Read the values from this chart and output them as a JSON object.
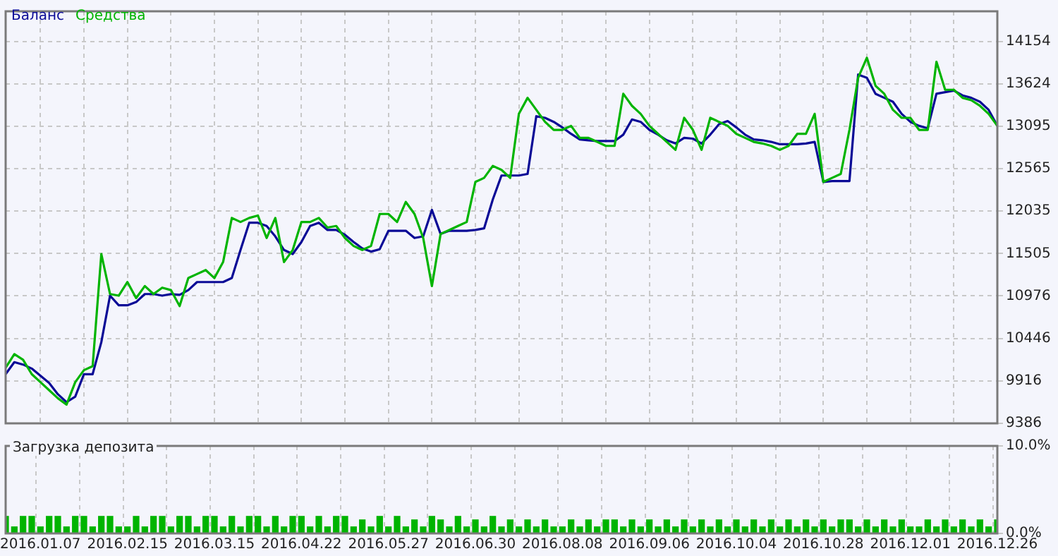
{
  "chart_data": [
    {
      "type": "line",
      "categories": [
        null,
        null,
        null,
        null,
        "2016.01.07",
        null,
        null,
        null,
        null,
        null,
        null,
        null,
        null,
        null,
        "2016.02.15",
        null,
        null,
        null,
        null,
        null,
        null,
        null,
        null,
        null,
        "2016.03.15",
        null,
        null,
        null,
        null,
        null,
        null,
        null,
        null,
        null,
        "2016.04.22",
        null,
        null,
        null,
        null,
        null,
        null,
        null,
        null,
        null,
        "2016.05.27",
        null,
        null,
        null,
        null,
        null,
        null,
        null,
        null,
        null,
        "2016.06.30",
        null,
        null,
        null,
        null,
        null,
        null,
        null,
        null,
        null,
        "2016.08.08",
        null,
        null,
        null,
        null,
        null,
        null,
        null,
        null,
        null,
        "2016.09.06",
        null,
        null,
        null,
        null,
        null,
        null,
        null,
        null,
        null,
        "2016.10.04",
        null,
        null,
        null,
        null,
        null,
        null,
        null,
        null,
        null,
        "2016.10.28",
        null,
        null,
        null,
        null,
        null,
        null,
        null,
        null,
        null,
        "2016.12.01",
        null,
        null,
        null,
        null,
        null,
        null,
        null,
        null,
        null,
        "2016.12.26"
      ],
      "series": [
        {
          "name": "Средства",
          "color": "#00b400",
          "values": [
            10080,
            10250,
            10180,
            10000,
            9900,
            9800,
            9700,
            9620,
            9900,
            10050,
            10100,
            11500,
            11000,
            10980,
            11150,
            10950,
            11100,
            11000,
            11080,
            11050,
            10850,
            11200,
            11250,
            11300,
            11200,
            11400,
            11950,
            11900,
            11950,
            11980,
            11700,
            11950,
            11400,
            11550,
            11900,
            11900,
            11950,
            11830,
            11850,
            11700,
            11600,
            11550,
            11600,
            12000,
            12000,
            11900,
            12150,
            12000,
            11700,
            11100,
            11750,
            11800,
            11850,
            11900,
            12400,
            12450,
            12600,
            12550,
            12450,
            13250,
            13450,
            13300,
            13150,
            13050,
            13050,
            13100,
            12950,
            12950,
            12900,
            12850,
            12850,
            13500,
            13350,
            13250,
            13100,
            13000,
            12900,
            12800,
            13200,
            13050,
            12800,
            13200,
            13150,
            13100,
            13000,
            12950,
            12900,
            12880,
            12850,
            12800,
            12850,
            13000,
            13000,
            13250,
            12400,
            12450,
            12500,
            13050,
            13700,
            13950,
            13600,
            13500,
            13300,
            13200,
            13200,
            13050,
            13050,
            13900,
            13550,
            13550,
            13450,
            13420,
            13350,
            13250,
            13100
          ]
        },
        {
          "name": "Баланс",
          "color": "#0a0a96",
          "values": [
            10000,
            10150,
            10120,
            10070,
            9980,
            9890,
            9750,
            9650,
            9720,
            10000,
            10000,
            10400,
            10980,
            10860,
            10860,
            10900,
            11000,
            11000,
            10980,
            11000,
            10990,
            11050,
            11150,
            11150,
            11150,
            11150,
            11200,
            11550,
            11890,
            11890,
            11850,
            11720,
            11550,
            11500,
            11650,
            11850,
            11890,
            11800,
            11800,
            11740,
            11650,
            11570,
            11530,
            11560,
            11790,
            11790,
            11790,
            11700,
            11720,
            12050,
            11750,
            11790,
            11790,
            11790,
            11800,
            11820,
            12180,
            12480,
            12480,
            12480,
            12500,
            13220,
            13200,
            13150,
            13080,
            13000,
            12930,
            12920,
            12910,
            12910,
            12910,
            12990,
            13180,
            13150,
            13050,
            12990,
            12920,
            12880,
            12950,
            12940,
            12880,
            12990,
            13120,
            13160,
            13080,
            12990,
            12930,
            12920,
            12900,
            12870,
            12870,
            12870,
            12880,
            12900,
            12400,
            12410,
            12410,
            12410,
            13740,
            13700,
            13500,
            13450,
            13400,
            13250,
            13150,
            13100,
            13070,
            13500,
            13520,
            13540,
            13480,
            13450,
            13400,
            13300,
            13100
          ]
        }
      ],
      "ylim": [
        9386,
        14530
      ],
      "yticks": [
        9386,
        9916,
        10446,
        10976,
        11505,
        12035,
        12565,
        13095,
        13624,
        14154
      ],
      "grid": true,
      "legend": "top left",
      "tick_labels": "y"
    },
    {
      "type": "bar",
      "title": "Загрузка депозита",
      "categories": [
        null,
        null,
        null,
        null,
        "2016.01.07",
        null,
        null,
        null,
        null,
        null,
        null,
        null,
        null,
        null,
        "2016.02.15",
        null,
        null,
        null,
        null,
        null,
        null,
        null,
        null,
        null,
        "2016.03.15",
        null,
        null,
        null,
        null,
        null,
        null,
        null,
        null,
        null,
        "2016.04.22",
        null,
        null,
        null,
        null,
        null,
        null,
        null,
        null,
        null,
        "2016.05.27",
        null,
        null,
        null,
        null,
        null,
        null,
        null,
        null,
        null,
        "2016.06.30",
        null,
        null,
        null,
        null,
        null,
        null,
        null,
        null,
        null,
        "2016.08.08",
        null,
        null,
        null,
        null,
        null,
        null,
        null,
        null,
        null,
        "2016.09.06",
        null,
        null,
        null,
        null,
        null,
        null,
        null,
        null,
        null,
        "2016.10.04",
        null,
        null,
        null,
        null,
        null,
        null,
        null,
        null,
        null,
        "2016.10.28",
        null,
        null,
        null,
        null,
        null,
        null,
        null,
        null,
        null,
        "2016.12.01",
        null,
        null,
        null,
        null,
        null,
        null,
        null,
        null,
        null,
        "2016.12.26"
      ],
      "color": "#00b400",
      "values": [
        2.0,
        0.8,
        2.0,
        2.0,
        0.8,
        2.0,
        2.0,
        0.8,
        2.0,
        2.0,
        0.8,
        2.0,
        2.0,
        0.8,
        0.8,
        2.0,
        0.8,
        2.0,
        2.0,
        0.8,
        2.0,
        2.0,
        0.8,
        2.0,
        2.0,
        0.8,
        2.0,
        0.8,
        2.0,
        2.0,
        0.8,
        2.0,
        0.8,
        2.0,
        2.0,
        0.8,
        2.0,
        0.8,
        2.0,
        2.0,
        0.8,
        1.6,
        0.8,
        2.0,
        0.8,
        2.0,
        0.8,
        1.6,
        0.8,
        2.0,
        1.6,
        0.8,
        2.0,
        0.8,
        1.6,
        0.8,
        2.0,
        0.8,
        1.6,
        0.8,
        1.6,
        0.8,
        1.6,
        0.8,
        0.8,
        1.6,
        0.8,
        1.6,
        0.8,
        1.6,
        1.6,
        0.8,
        1.6,
        0.8,
        1.6,
        0.8,
        1.6,
        0.8,
        1.6,
        0.8,
        1.6,
        0.8,
        1.6,
        0.8,
        1.6,
        0.8,
        1.6,
        0.8,
        1.6,
        0.8,
        1.6,
        0.8,
        1.6,
        0.8,
        1.6,
        0.8,
        1.6,
        1.6,
        0.8,
        1.6,
        0.8,
        1.6,
        0.8,
        1.6,
        0.8,
        0.8,
        1.6,
        0.8,
        1.6,
        0.8,
        1.6,
        0.8,
        1.6,
        0.8,
        1.6
      ],
      "ylim": [
        0,
        10
      ],
      "yticks": [
        {
          "value": 0,
          "label": "0.0%"
        },
        {
          "value": 10,
          "label": "10.0%"
        }
      ],
      "grid": true
    }
  ]
}
